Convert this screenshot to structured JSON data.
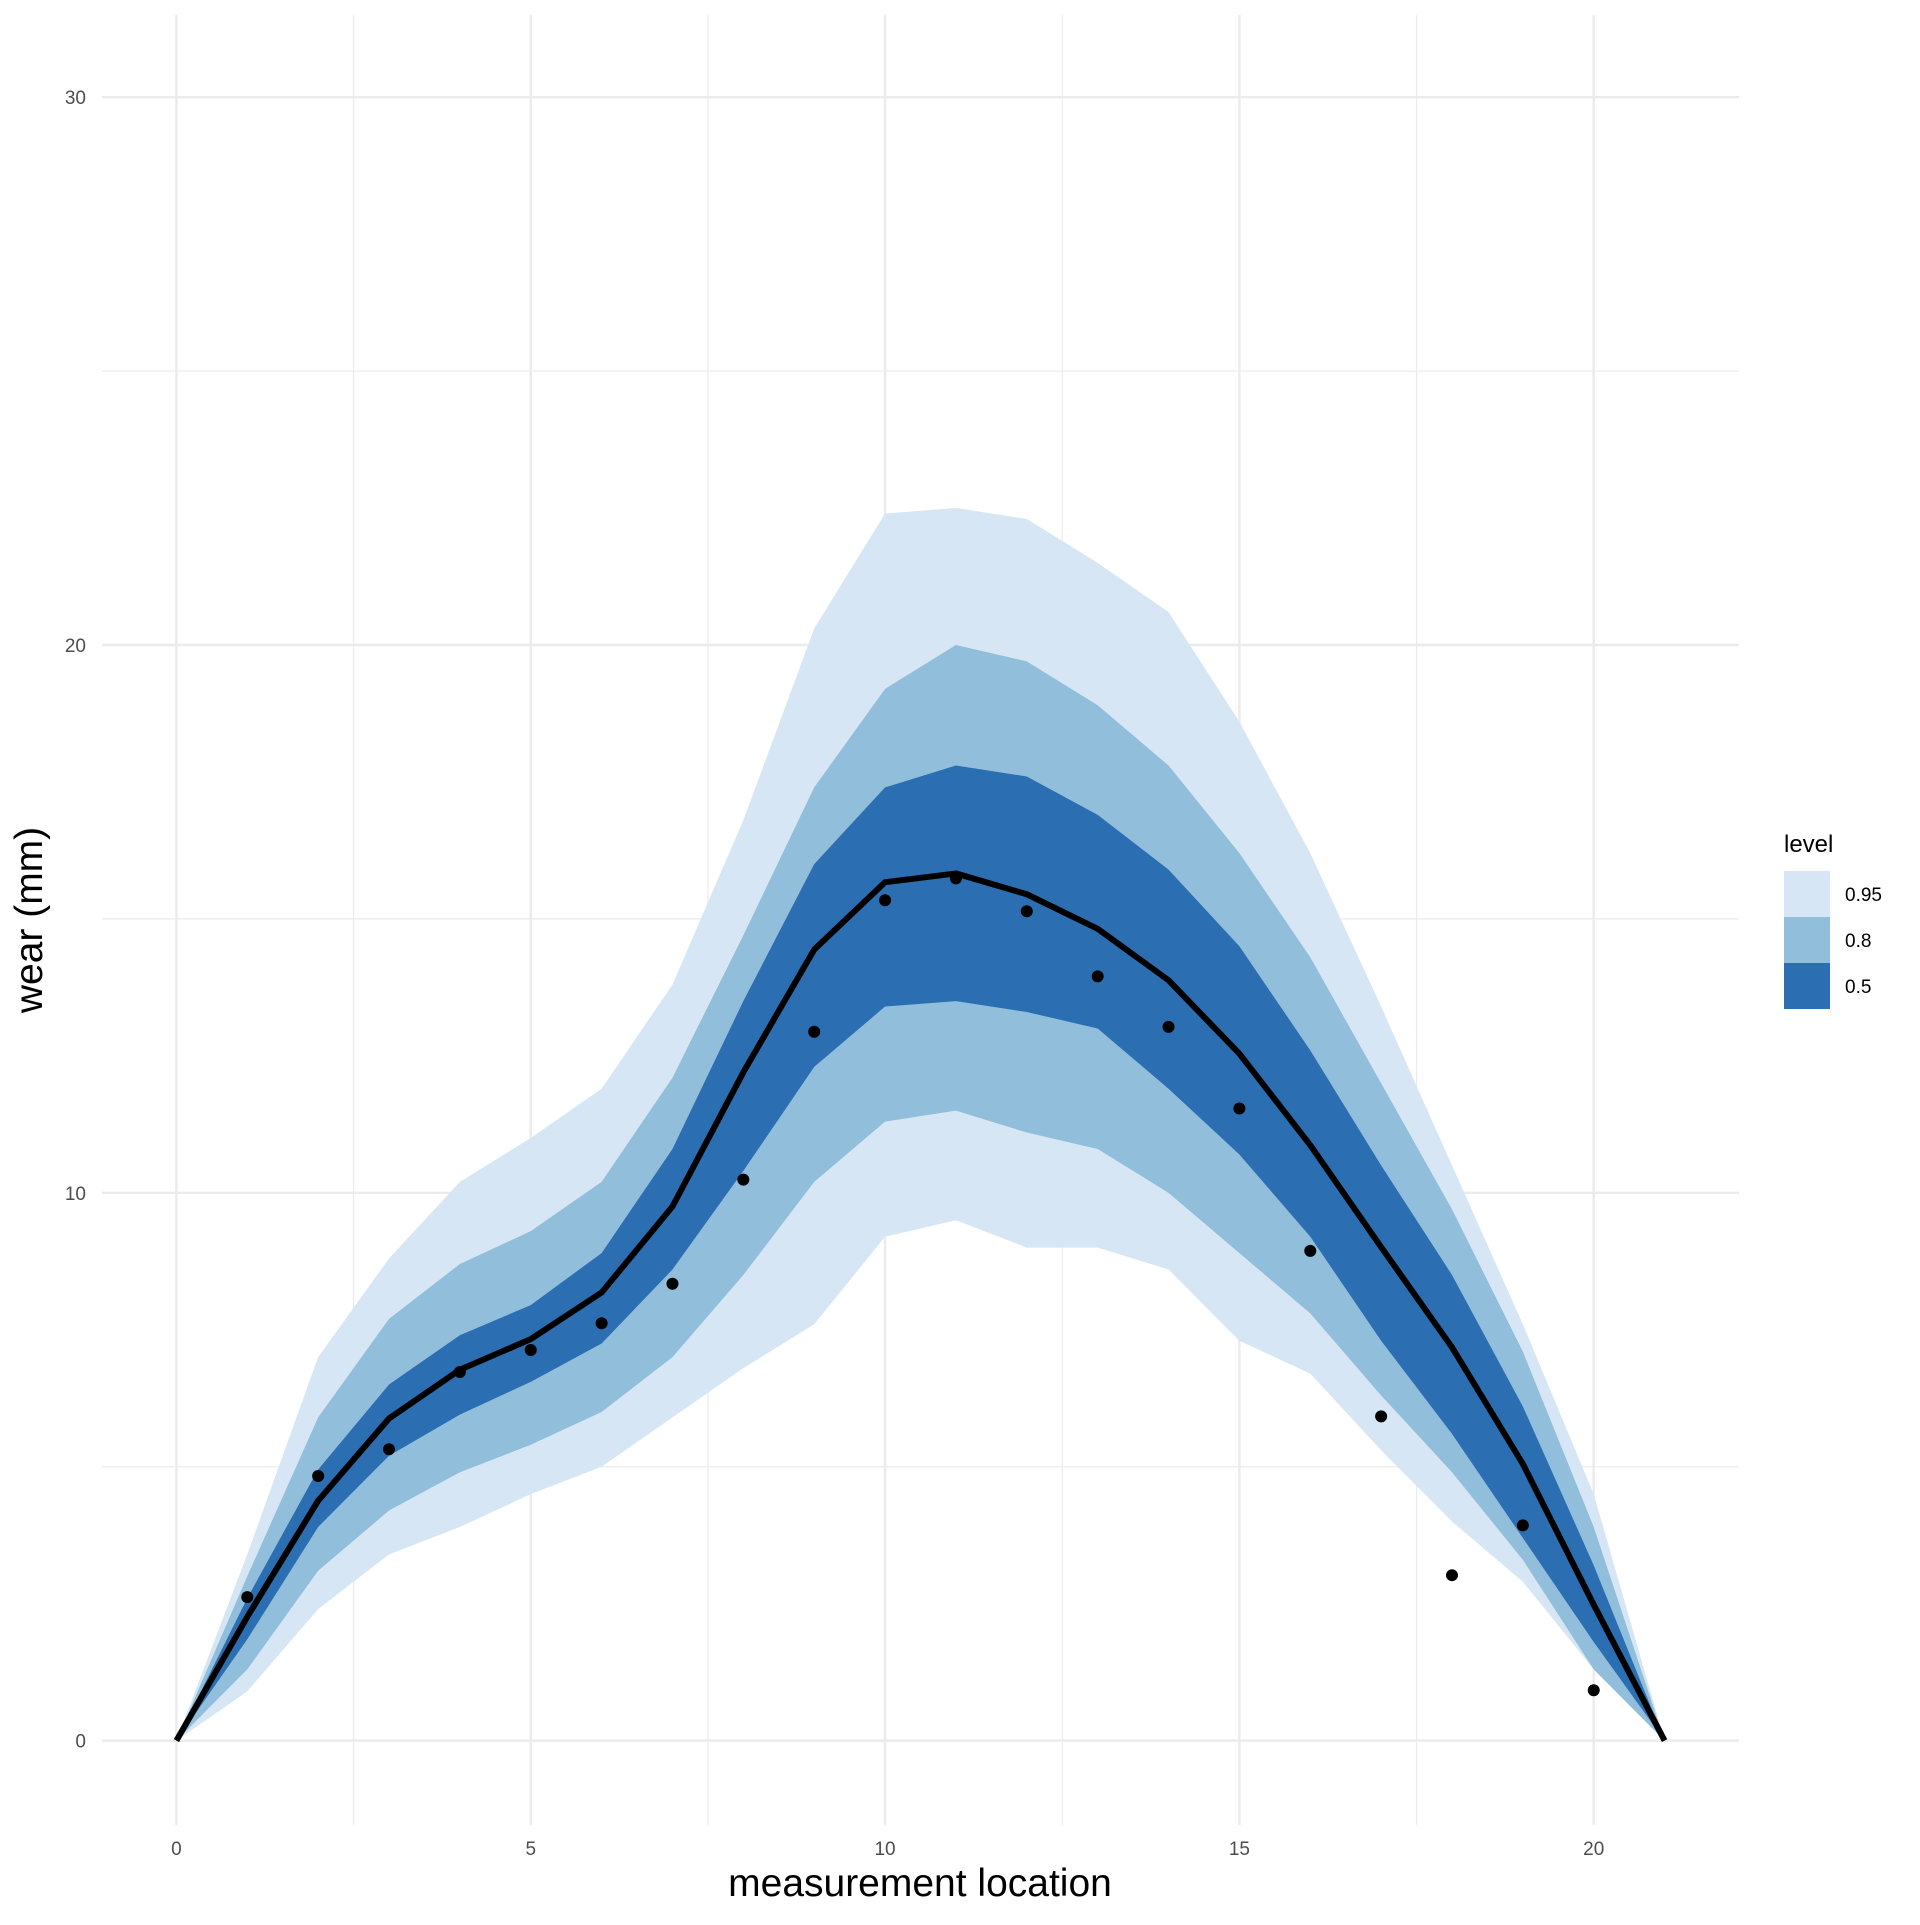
{
  "chart_data": {
    "type": "lineribbon",
    "x_label": "measurement location",
    "y_label": "wear (mm)",
    "legend_title": "level",
    "x": [
      0,
      1,
      2,
      3,
      4,
      5,
      6,
      7,
      8,
      9,
      10,
      11,
      12,
      13,
      14,
      15,
      16,
      17,
      18,
      19,
      20,
      21
    ],
    "series": [
      {
        "name": "0.95",
        "color": "#d6e6f4",
        "lower": [
          0,
          0.9,
          2.4,
          3.4,
          3.9,
          4.5,
          5.0,
          5.9,
          6.8,
          7.6,
          9.2,
          9.5,
          9.0,
          9.0,
          8.6,
          7.3,
          6.7,
          5.3,
          4.0,
          2.9,
          1.3,
          0
        ],
        "upper": [
          0,
          3.4,
          7.0,
          8.8,
          10.2,
          11.0,
          11.9,
          13.8,
          16.8,
          20.3,
          22.4,
          22.5,
          22.3,
          21.5,
          20.6,
          18.6,
          16.2,
          13.4,
          10.5,
          7.6,
          4.5,
          0
        ]
      },
      {
        "name": "0.8",
        "color": "#91bedb",
        "lower": [
          0,
          1.3,
          3.1,
          4.2,
          4.9,
          5.4,
          6.0,
          7.0,
          8.5,
          10.2,
          11.3,
          11.5,
          11.1,
          10.8,
          10.0,
          8.9,
          7.8,
          6.3,
          4.9,
          3.3,
          1.3,
          0
        ],
        "upper": [
          0,
          3.0,
          5.9,
          7.7,
          8.7,
          9.3,
          10.2,
          12.1,
          14.7,
          17.4,
          19.2,
          20.0,
          19.7,
          18.9,
          17.8,
          16.2,
          14.3,
          12.0,
          9.7,
          7.1,
          3.9,
          0
        ]
      },
      {
        "name": "0.5",
        "color": "#2b6eb1",
        "lower": [
          0,
          1.85,
          3.9,
          5.2,
          5.95,
          6.55,
          7.25,
          8.6,
          10.4,
          12.3,
          13.4,
          13.5,
          13.3,
          13.0,
          11.9,
          10.7,
          9.2,
          7.3,
          5.6,
          3.7,
          1.8,
          0
        ],
        "upper": [
          0,
          2.6,
          4.95,
          6.5,
          7.4,
          7.95,
          8.9,
          10.8,
          13.5,
          16.0,
          17.4,
          17.8,
          17.6,
          16.9,
          15.9,
          14.5,
          12.6,
          10.5,
          8.5,
          6.1,
          3.2,
          0
        ]
      }
    ],
    "line_values": [
      0,
      2.26,
      4.38,
      5.88,
      6.77,
      7.33,
      8.18,
      9.75,
      12.2,
      14.44,
      15.67,
      15.83,
      15.45,
      14.82,
      13.88,
      12.54,
      10.87,
      9.01,
      7.18,
      5.05,
      2.48,
      0
    ],
    "line_color": "#000000",
    "points": {
      "x": [
        1,
        2,
        3,
        4,
        5,
        6,
        7,
        8,
        9,
        10,
        11,
        12,
        13,
        14,
        15,
        16,
        17,
        18,
        19,
        20
      ],
      "values": [
        2.62,
        4.83,
        5.32,
        6.73,
        7.13,
        7.62,
        8.34,
        10.24,
        12.94,
        15.34,
        15.74,
        15.14,
        13.95,
        13.03,
        11.54,
        8.94,
        5.92,
        3.02,
        3.93,
        0.92
      ],
      "color": "#000000"
    },
    "xlim": [
      -1.05,
      22.05
    ],
    "ylim": [
      -1.54,
      31.5
    ],
    "xticks": [
      0,
      5,
      10,
      15,
      20
    ],
    "yticks": [
      0,
      10,
      20,
      30
    ],
    "grid": true
  }
}
